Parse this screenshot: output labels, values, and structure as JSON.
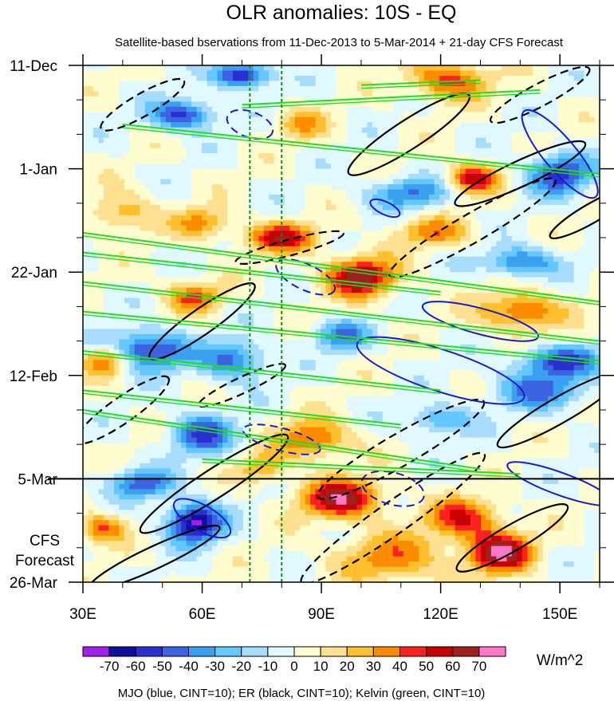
{
  "chart_data": {
    "type": "heatmap",
    "title": "OLR anomalies: 10S - EQ",
    "subtitle": "Satellite-based bservations from 11-Dec-2013 to 5-Mar-2014 + 21-day CFS Forecast",
    "x": {
      "ticks": [
        30,
        60,
        90,
        120,
        150
      ],
      "tick_labels": [
        "30E",
        "60E",
        "90E",
        "120E",
        "150E"
      ],
      "range": [
        30,
        160
      ]
    },
    "y": {
      "ticks": [
        0,
        21,
        42,
        63,
        84,
        105
      ],
      "tick_labels": [
        "11-Dec",
        "1-Jan",
        "22-Jan",
        "12-Feb",
        "5-Mar",
        "26-Mar"
      ],
      "range_days": [
        0,
        105
      ],
      "reversed": true
    },
    "forecast_start_day": 84,
    "forecast_label": [
      "CFS",
      "Forecast"
    ],
    "reference_lines_lon": [
      72,
      80
    ],
    "colorbar": {
      "levels": [
        -70,
        -60,
        -50,
        -40,
        -30,
        -20,
        -10,
        0,
        10,
        20,
        30,
        40,
        50,
        60,
        70
      ],
      "level_labels": [
        "-70",
        "-60",
        "-50",
        "-40",
        "-30",
        "-20",
        "-10",
        "0",
        "10",
        "20",
        "30",
        "40",
        "50",
        "60",
        "70"
      ],
      "colors": [
        "#a020f0",
        "#1010a0",
        "#2830d0",
        "#3c64e0",
        "#3ca0f0",
        "#64c8ff",
        "#a8dcff",
        "#e0f8ff",
        "#fffcd0",
        "#ffe090",
        "#ffc030",
        "#ff8c00",
        "#ff2020",
        "#c80000",
        "#a02020",
        "#ff78c8"
      ],
      "units": "W/m^2"
    },
    "legend_note": "MJO (blue, CINT=10); ER (black, CINT=10); Kelvin (green, CINT=10)",
    "contour_colors": {
      "mjo": "#1a1ad0",
      "er": "#000000",
      "kelvin": "#22dd22",
      "reference": "#1a8a1a"
    }
  }
}
